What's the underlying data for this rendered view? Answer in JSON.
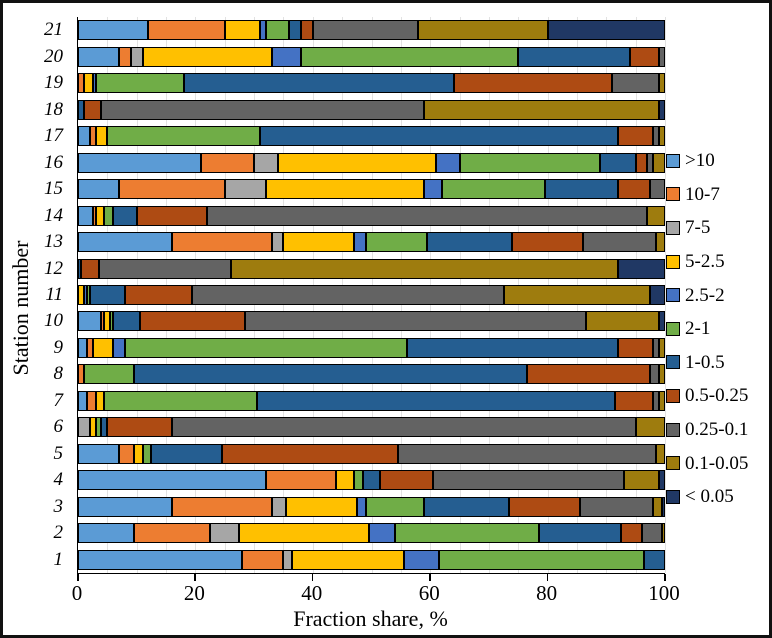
{
  "axes": {
    "x_label": "Fraction share, %",
    "y_label": "Station number",
    "x_ticks": [
      "0",
      "20",
      "40",
      "60",
      "80",
      "100"
    ],
    "x_range": [
      0,
      100
    ],
    "minor_grid_step": 5,
    "grid": "light vertical gridlines every 5%"
  },
  "legend": {
    "position": "right",
    "items": [
      {
        "label": ">10",
        "color": "#5B9BD5"
      },
      {
        "label": "10-7",
        "color": "#ED7D31"
      },
      {
        "label": "7-5",
        "color": "#A6A6A6"
      },
      {
        "label": "5-2.5",
        "color": "#FFC000"
      },
      {
        "label": "2.5-2",
        "color": "#4472C4"
      },
      {
        "label": "2-1",
        "color": "#70AD47"
      },
      {
        "label": "1-0.5",
        "color": "#255E91"
      },
      {
        "label": "0.5-0.25",
        "color": "#AE4B13"
      },
      {
        "label": "0.25-0.1",
        "color": "#636363"
      },
      {
        "label": "0.1-0.05",
        "color": "#9E7C0E"
      },
      {
        "label": "< 0.05",
        "color": "#203864"
      }
    ]
  },
  "chart_data": {
    "type": "bar",
    "variant": "horizontal-stacked",
    "title": "",
    "xlabel": "Fraction share, %",
    "ylabel": "Station number",
    "xlim": [
      0,
      100
    ],
    "categories": [
      ">10",
      "10-7",
      "7-5",
      "5-2.5",
      "2.5-2",
      "2-1",
      "1-0.5",
      "0.5-0.25",
      "0.25-0.1",
      "0.1-0.05",
      "< 0.05"
    ],
    "category_colors": [
      "#5B9BD5",
      "#ED7D31",
      "#A6A6A6",
      "#FFC000",
      "#4472C4",
      "#70AD47",
      "#255E91",
      "#AE4B13",
      "#636363",
      "#9E7C0E",
      "#203864"
    ],
    "rows_top_to_bottom": [
      {
        "station": "21",
        "values": [
          12,
          13,
          0,
          6,
          1,
          4,
          2,
          2,
          18,
          22,
          20
        ]
      },
      {
        "station": "20",
        "values": [
          7,
          2,
          2,
          22,
          5,
          37,
          19,
          5,
          1,
          0,
          0
        ]
      },
      {
        "station": "19",
        "values": [
          0,
          1,
          0,
          1.5,
          0.5,
          15,
          46,
          27,
          8,
          1,
          0
        ]
      },
      {
        "station": "18",
        "values": [
          0,
          0,
          0,
          0,
          0,
          0,
          1,
          3,
          55,
          40,
          1
        ]
      },
      {
        "station": "17",
        "values": [
          2,
          1,
          0,
          2,
          0,
          26,
          61,
          6,
          1,
          1,
          0
        ]
      },
      {
        "station": "16",
        "values": [
          21,
          9,
          4,
          27,
          4,
          24,
          6,
          2,
          1,
          2,
          0
        ]
      },
      {
        "station": "15",
        "values": [
          7,
          18,
          7,
          27,
          3,
          17.5,
          12.5,
          5.5,
          2.5,
          0,
          0
        ]
      },
      {
        "station": "14",
        "values": [
          2.5,
          0.5,
          0,
          1.5,
          0,
          1.5,
          4,
          12,
          75,
          3,
          0
        ]
      },
      {
        "station": "13",
        "values": [
          16,
          17,
          2,
          12,
          2,
          10.5,
          14.5,
          12,
          12.5,
          1.5,
          0
        ]
      },
      {
        "station": "12",
        "values": [
          0,
          0,
          0,
          0,
          0,
          0,
          0.5,
          3,
          22.5,
          66,
          8
        ]
      },
      {
        "station": "11",
        "values": [
          0,
          0,
          0,
          1,
          0.5,
          0.5,
          6,
          11.5,
          53,
          25,
          2.5
        ]
      },
      {
        "station": "10",
        "values": [
          4,
          0.5,
          0,
          1,
          0,
          0.5,
          4.5,
          18,
          58,
          12.5,
          1
        ]
      },
      {
        "station": "9",
        "values": [
          1.5,
          1,
          0,
          3.5,
          2,
          48,
          36,
          6,
          1,
          1,
          0
        ]
      },
      {
        "station": "8",
        "values": [
          0,
          1,
          0,
          0,
          0,
          8.5,
          67,
          21,
          1.5,
          1,
          0
        ]
      },
      {
        "station": "7",
        "values": [
          1.5,
          1.5,
          0,
          1.5,
          0,
          26,
          61,
          6.5,
          1,
          1,
          0
        ]
      },
      {
        "station": "6",
        "values": [
          0,
          0,
          2,
          1,
          0,
          1,
          1,
          11,
          79,
          5,
          0
        ]
      },
      {
        "station": "5",
        "values": [
          7,
          2.5,
          0,
          1.5,
          0,
          1.5,
          12,
          30,
          44,
          1.5,
          0
        ]
      },
      {
        "station": "4",
        "values": [
          32,
          12,
          0,
          3,
          0,
          1.5,
          3,
          9,
          32.5,
          6,
          1
        ]
      },
      {
        "station": "3",
        "values": [
          16,
          17,
          2.5,
          12,
          1.5,
          10,
          14.5,
          12,
          12.5,
          1.5,
          0.5
        ]
      },
      {
        "station": "2",
        "values": [
          9.5,
          13,
          5,
          22,
          4.5,
          24.5,
          14,
          3.5,
          3.5,
          0.5,
          0
        ]
      },
      {
        "station": "1",
        "values": [
          28,
          7,
          1.5,
          19,
          6,
          35,
          3.5,
          0,
          0,
          0,
          0
        ]
      }
    ]
  }
}
